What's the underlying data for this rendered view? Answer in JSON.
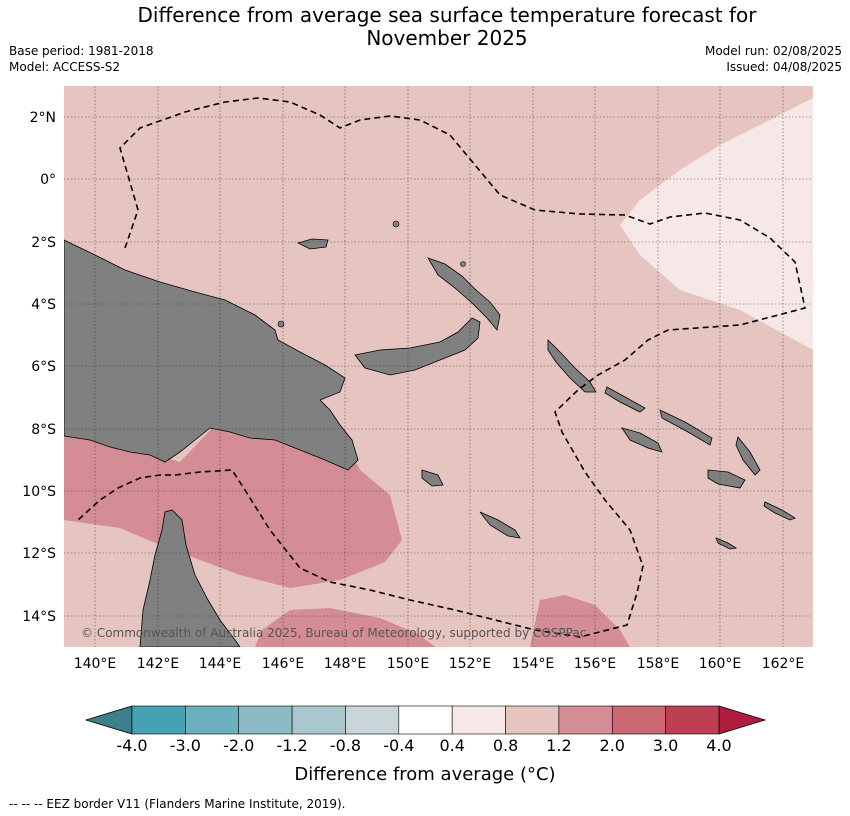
{
  "title": {
    "line1": "Difference from average sea surface temperature forecast for",
    "line2": "November 2025"
  },
  "meta": {
    "base_period": "Base period: 1981-2018",
    "model": "Model: ACCESS-S2",
    "model_run": "Model run: 02/08/2025",
    "issued": "Issued: 04/08/2025"
  },
  "map": {
    "lat_labels": [
      "2°N",
      "0°",
      "2°S",
      "4°S",
      "6°S",
      "8°S",
      "10°S",
      "12°S",
      "14°S"
    ],
    "lon_labels": [
      "140°E",
      "142°E",
      "144°E",
      "146°E",
      "148°E",
      "150°E",
      "152°E",
      "154°E",
      "156°E",
      "158°E",
      "160°E",
      "162°E"
    ],
    "copyright": "© Commonwealth of Australia 2025, Bureau of Meteorology, supported by COSPPac",
    "colors": {
      "land": "#808080",
      "anomaly_0_4_0_8": "#f5e8e6",
      "anomaly_0_8_1_2": "#e6c4c0",
      "anomaly_1_2_2_0": "#d48d95"
    }
  },
  "colorbar": {
    "ticks": [
      "-4.0",
      "-3.0",
      "-2.0",
      "-1.2",
      "-0.8",
      "-0.4",
      "0.4",
      "0.8",
      "1.2",
      "2.0",
      "3.0",
      "4.0"
    ],
    "colors": [
      "#45a1b3",
      "#6cb0c0",
      "#8cbac5",
      "#a9c8cd",
      "#c8d5d9",
      "#ffffff",
      "#f5e8e6",
      "#e6c4c0",
      "#d48d95",
      "#cb6873",
      "#bc3f54"
    ],
    "low_extend_color": "#3d7f8b",
    "high_extend_color": "#b01c3c",
    "label": "Difference from average (°C)"
  },
  "footer": "--  --  -- EEZ border V11 (Flanders Marine Institute, 2019)."
}
